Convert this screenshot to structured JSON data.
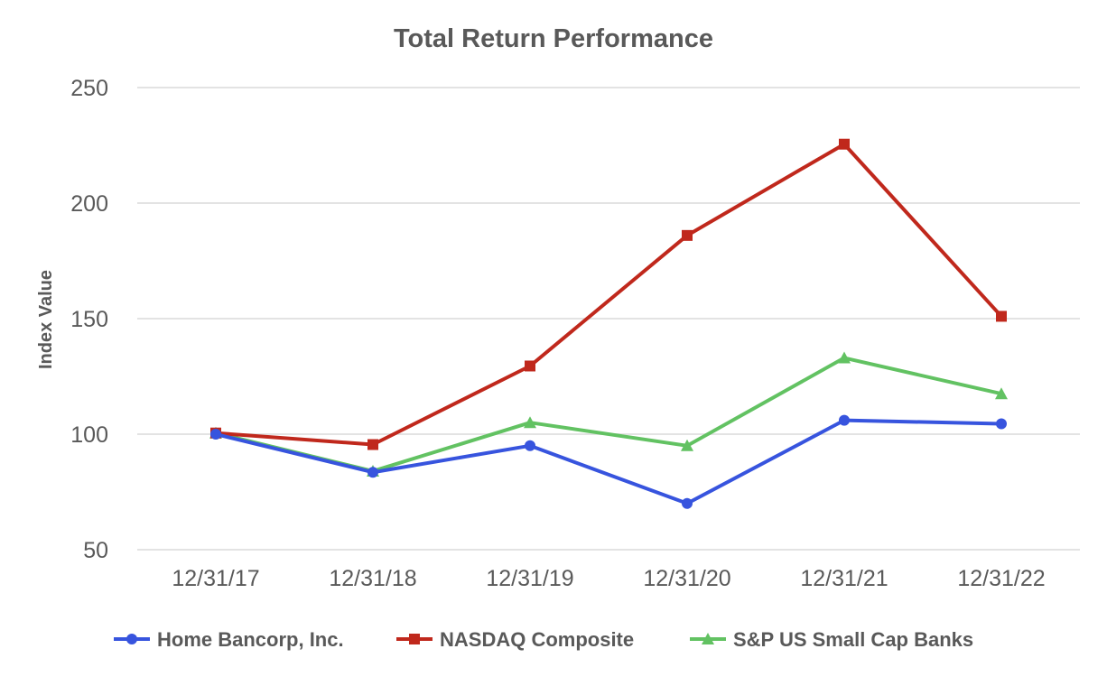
{
  "chart_data": {
    "type": "line",
    "title": "Total Return Performance",
    "xlabel": "",
    "ylabel": "Index Value",
    "ylim": [
      50,
      250
    ],
    "yticks": [
      50,
      100,
      150,
      200,
      250
    ],
    "grid": true,
    "legend_position": "bottom",
    "categories": [
      "12/31/17",
      "12/31/18",
      "12/31/19",
      "12/31/20",
      "12/31/21",
      "12/31/22"
    ],
    "series": [
      {
        "name": "Home Bancorp, Inc.",
        "color": "#3754de",
        "marker": "circle",
        "values": [
          100,
          83.5,
          95,
          70,
          106,
          104.5
        ]
      },
      {
        "name": "NASDAQ Composite",
        "color": "#c0281c",
        "marker": "square",
        "values": [
          100.5,
          95.5,
          129.5,
          186,
          225.5,
          151
        ]
      },
      {
        "name": "S&P US Small Cap Banks",
        "color": "#62c262",
        "marker": "triangle",
        "values": [
          100.5,
          84,
          105,
          95,
          133,
          117.5
        ]
      }
    ]
  }
}
